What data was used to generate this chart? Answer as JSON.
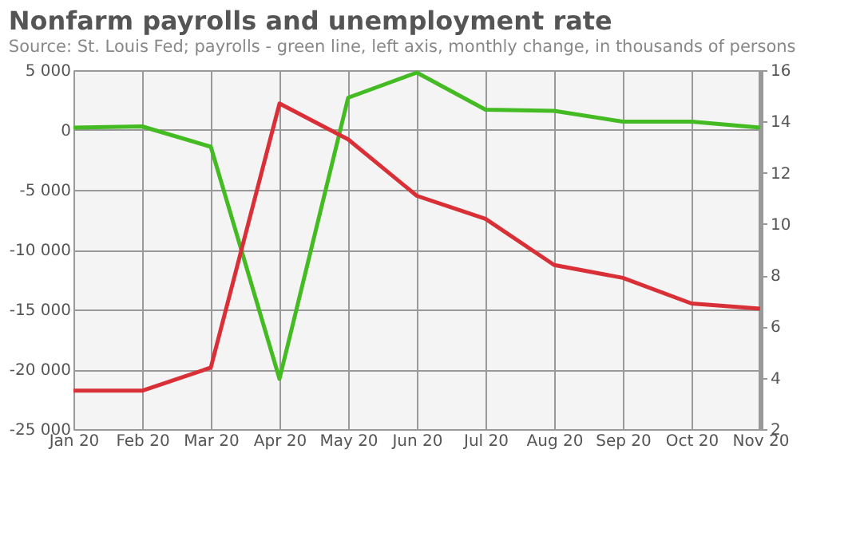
{
  "chart_data": {
    "type": "line",
    "title": "Nonfarm payrolls and unemployment rate",
    "subtitle": "Source: St. Louis Fed; payrolls - green line, left axis, monthly change, in thousands of persons",
    "categories": [
      "Jan 20",
      "Feb 20",
      "Mar 20",
      "Apr 20",
      "May 20",
      "Jun 20",
      "Jul 20",
      "Aug 20",
      "Sep 20",
      "Oct 20",
      "Nov 20"
    ],
    "series": [
      {
        "color": "#44bb22",
        "values": [
          200,
          300,
          -1400,
          -20800,
          2700,
          4800,
          1700,
          1600,
          700,
          700,
          200
        ]
      },
      {
        "color": "#d93038",
        "axis": "y2",
        "values": [
          3.5,
          3.5,
          4.4,
          14.7,
          13.3,
          11.1,
          10.2,
          8.4,
          7.9,
          6.9,
          6.7
        ]
      }
    ],
    "ylim": [
      -25000,
      5000
    ],
    "yticks": [
      {
        "value": -25000,
        "label": "-25 000"
      },
      {
        "value": -20000,
        "label": "-20 000"
      },
      {
        "value": -15000,
        "label": "-15 000"
      },
      {
        "value": -10000,
        "label": "-10 000"
      },
      {
        "value": -5000,
        "label": "-5 000"
      },
      0,
      {
        "value": 5000,
        "label": "5 000"
      }
    ],
    "y2lim": [
      2,
      16
    ],
    "y2ticks": [
      2,
      4,
      6,
      8,
      10,
      12,
      14,
      16
    ],
    "grid": true,
    "marker": "none",
    "line_style": "solid"
  }
}
